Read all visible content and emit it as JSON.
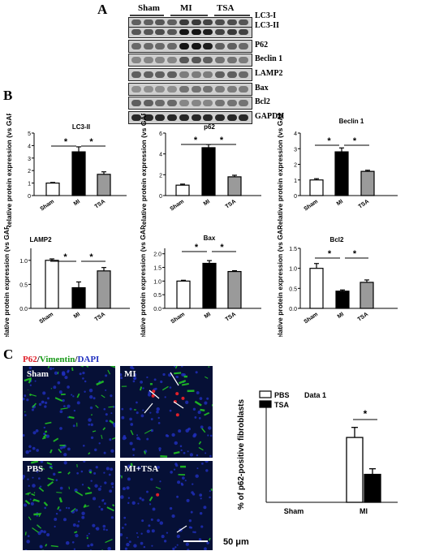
{
  "panels": {
    "A": "A",
    "B": "B",
    "C": "C"
  },
  "western_blot": {
    "groups": [
      "Sham",
      "MI",
      "TSA"
    ],
    "rows": [
      {
        "labels": [
          "LC3-I",
          "LC3-II"
        ]
      },
      {
        "labels": [
          "P62"
        ]
      },
      {
        "labels": [
          "Beclin 1"
        ]
      },
      {
        "labels": [
          "LAMP2"
        ]
      },
      {
        "labels": [
          "Bax"
        ]
      },
      {
        "labels": [
          "Bcl2"
        ]
      },
      {
        "labels": [
          "GAPDH"
        ]
      }
    ]
  },
  "chart_data": [
    {
      "type": "bar",
      "title": "LC3-II",
      "ylabel": "Relative protein expression (vs GAPDH)",
      "categories": [
        "Sham",
        "MI",
        "TSA"
      ],
      "values": [
        1.0,
        3.5,
        1.7
      ],
      "errors": [
        0.05,
        0.4,
        0.2
      ],
      "ylim": [
        0,
        5
      ],
      "yticks": [
        0,
        1,
        2,
        3,
        4,
        5
      ],
      "significance": [
        "*",
        "*"
      ]
    },
    {
      "type": "bar",
      "title": "p62",
      "ylabel": "Relative protein expression (vs GAPDH)",
      "categories": [
        "Sham",
        "MI",
        "TSA"
      ],
      "values": [
        1.0,
        4.6,
        1.8
      ],
      "errors": [
        0.1,
        0.3,
        0.15
      ],
      "ylim": [
        0,
        6
      ],
      "yticks": [
        0,
        2,
        4,
        6
      ],
      "significance": [
        "*",
        "*"
      ]
    },
    {
      "type": "bar",
      "title": "Beclin 1",
      "ylabel": "Relative protein expression (vs GAPDH)",
      "categories": [
        "Sham",
        "MI",
        "TSA"
      ],
      "values": [
        1.0,
        2.8,
        1.55
      ],
      "errors": [
        0.08,
        0.25,
        0.07
      ],
      "ylim": [
        0,
        4
      ],
      "yticks": [
        0,
        1,
        2,
        3,
        4
      ],
      "significance": [
        "*",
        "*"
      ]
    },
    {
      "type": "bar",
      "title": "LAMP2",
      "ylabel": "Relative protein expression (vs GAPDH)",
      "categories": [
        "Sham",
        "MI",
        "TSA"
      ],
      "values": [
        1.0,
        0.43,
        0.78
      ],
      "errors": [
        0.03,
        0.12,
        0.07
      ],
      "ylim": [
        0,
        1.25
      ],
      "yticks": [
        0.0,
        0.5,
        1.0
      ],
      "ytick_labels": [
        "0.0",
        "0.5",
        "1.0"
      ],
      "significance": [
        "*",
        "*"
      ]
    },
    {
      "type": "bar",
      "title": "Bax",
      "ylabel": "Relative protein expression (vs GAPDH)",
      "categories": [
        "Sham",
        "MI",
        "TSA"
      ],
      "values": [
        1.0,
        1.65,
        1.35
      ],
      "errors": [
        0.03,
        0.1,
        0.03
      ],
      "ylim": [
        0,
        2.2
      ],
      "yticks": [
        0.0,
        0.5,
        1.0,
        1.5,
        2.0
      ],
      "ytick_labels": [
        "0.0",
        "0.5",
        "1.0",
        "1.5",
        "2.0"
      ],
      "significance": [
        "*",
        "*"
      ]
    },
    {
      "type": "bar",
      "title": "Bcl2",
      "ylabel": "Relative protein expression (vs GAPDH)",
      "categories": [
        "Sham",
        "MI",
        "TSA"
      ],
      "values": [
        1.0,
        0.43,
        0.65
      ],
      "errors": [
        0.12,
        0.03,
        0.06
      ],
      "ylim": [
        0,
        1.5
      ],
      "yticks": [
        0.0,
        0.5,
        1.0,
        1.5
      ],
      "ytick_labels": [
        "0.0",
        "0.5",
        "1.0",
        "1.5"
      ],
      "significance": [
        "*",
        "*"
      ]
    },
    {
      "type": "bar",
      "title": "Data 1",
      "ylabel": "% of p62-positive fibroblasts",
      "categories": [
        "Sham",
        "MI"
      ],
      "series": [
        {
          "name": "PBS",
          "values": [
            0,
            58
          ],
          "errors": [
            0,
            9
          ]
        },
        {
          "name": "TSA",
          "values": [
            0,
            25
          ],
          "errors": [
            0,
            5
          ]
        }
      ],
      "ylim": [
        0,
        90
      ],
      "significance": [
        "*"
      ],
      "legend": "top-left"
    }
  ],
  "immunofluorescence": {
    "stain_title": {
      "p62": "P62",
      "sep1": "/",
      "vimentin": "Vimentin",
      "sep2": "/",
      "dapi": "DAPI"
    },
    "colors": {
      "p62": "#e0202a",
      "vimentin": "#22cc22",
      "dapi": "#2030c0"
    },
    "images": [
      {
        "label": "Sham"
      },
      {
        "label": "MI"
      },
      {
        "label": "PBS"
      },
      {
        "label": "MI+TSA"
      }
    ],
    "scale_bar": "50 μm"
  }
}
